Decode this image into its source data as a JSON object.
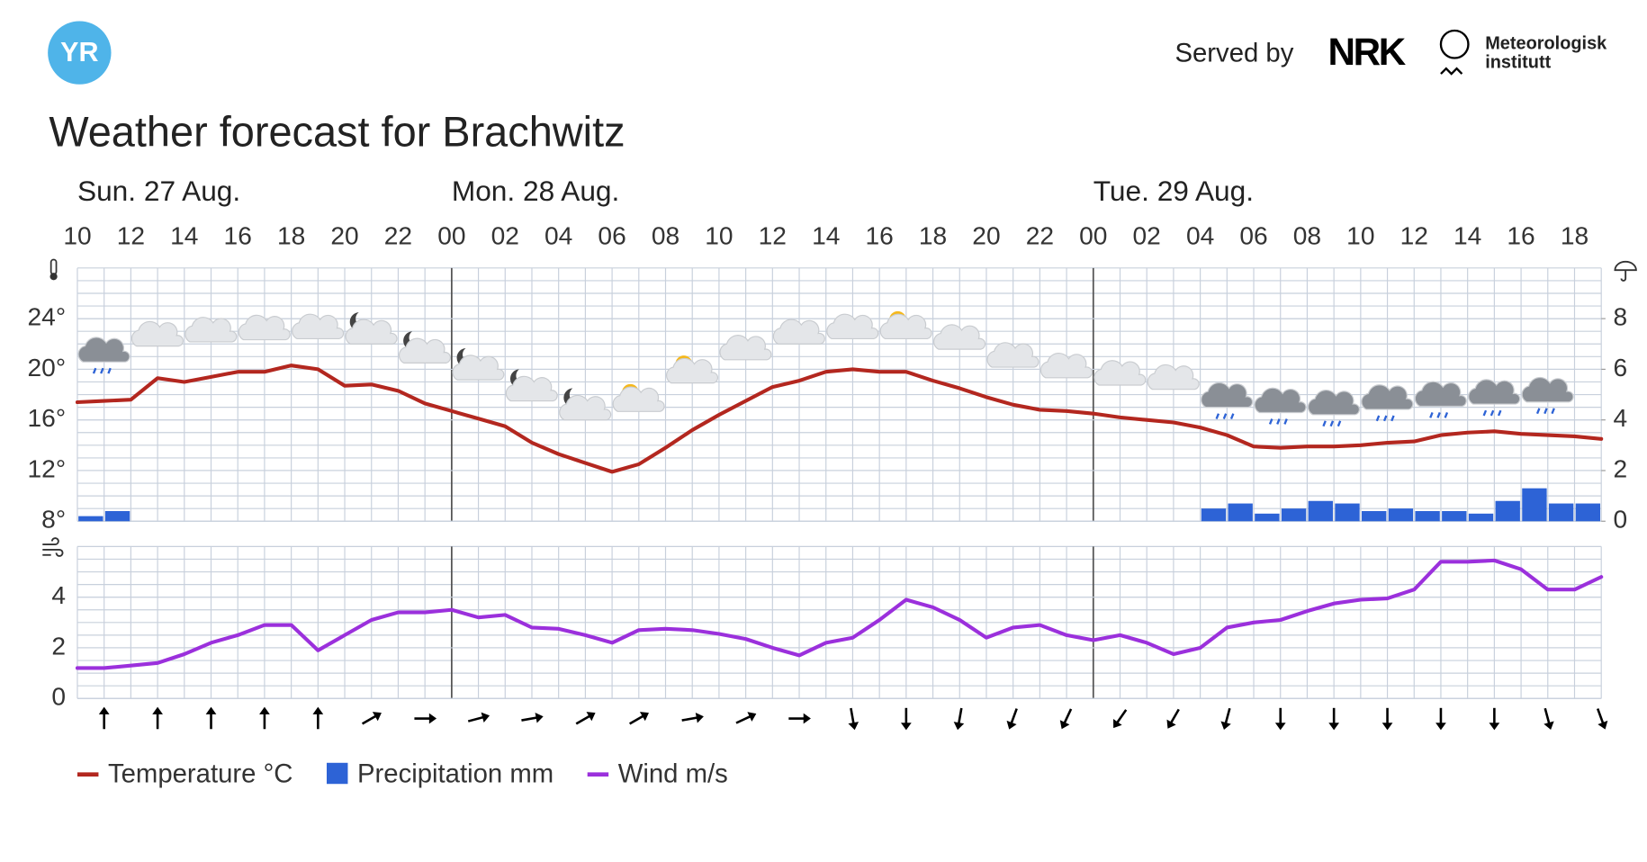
{
  "header": {
    "logo": "YR",
    "served_by": "Served by",
    "partner": "NRK",
    "institute": [
      "Meteorologisk",
      "institutt"
    ]
  },
  "title": "Weather forecast for Brachwitz",
  "days": [
    "Sun. 27 Aug.",
    "Mon. 28 Aug.",
    "Tue. 29 Aug."
  ],
  "chart_data": [
    {
      "type": "line",
      "x": [
        "10",
        "11",
        "12",
        "13",
        "14",
        "15",
        "16",
        "17",
        "18",
        "19",
        "20",
        "21",
        "22",
        "23",
        "00",
        "01",
        "02",
        "03",
        "04",
        "05",
        "06",
        "07",
        "08",
        "09",
        "10",
        "11",
        "12",
        "13",
        "14",
        "15",
        "16",
        "17",
        "18",
        "19",
        "20",
        "21",
        "22",
        "23",
        "00",
        "01",
        "02",
        "03",
        "04",
        "05",
        "06",
        "07",
        "08",
        "09",
        "10",
        "11",
        "12",
        "13",
        "14",
        "15",
        "16",
        "17",
        "18",
        "19"
      ],
      "ylim": [
        8,
        28
      ],
      "yticks": [
        {
          "value": 8,
          "label": "8°"
        },
        {
          "value": 12,
          "label": "12°"
        },
        {
          "value": 16,
          "label": "16°"
        },
        {
          "value": 20,
          "label": "20°"
        },
        {
          "value": 24,
          "label": "24°"
        }
      ],
      "y2lim": [
        0,
        10
      ],
      "y2ticks": [
        0,
        2,
        4,
        6,
        8
      ],
      "grid": true,
      "series": [
        {
          "name": "Temperature °C",
          "color": "#b3271f",
          "values": [
            17.4,
            17.5,
            17.6,
            19.3,
            19.0,
            19.4,
            19.8,
            19.8,
            20.3,
            20.0,
            18.7,
            18.8,
            18.3,
            17.3,
            16.7,
            16.1,
            15.5,
            14.2,
            13.3,
            12.6,
            11.9,
            12.5,
            13.8,
            15.2,
            16.4,
            17.5,
            18.6,
            19.1,
            19.8,
            20.0,
            19.8,
            19.8,
            19.1,
            18.5,
            17.8,
            17.2,
            16.8,
            16.7,
            16.5,
            16.2,
            16.0,
            15.8,
            15.4,
            14.8,
            13.9,
            13.8,
            13.9,
            13.9,
            14.0,
            14.2,
            14.3,
            14.8,
            15.0,
            15.1,
            14.9,
            14.8,
            14.7,
            14.5
          ]
        },
        {
          "name": "Precipitation mm",
          "color": "#2d63d6",
          "type": "bar",
          "axis": "y2",
          "values": [
            0.2,
            0.4,
            0,
            0,
            0,
            0,
            0,
            0,
            0,
            0,
            0,
            0,
            0,
            0,
            0,
            0,
            0,
            0,
            0,
            0,
            0,
            0,
            0,
            0,
            0,
            0,
            0,
            0,
            0,
            0,
            0,
            0,
            0,
            0,
            0,
            0,
            0,
            0,
            0,
            0,
            0,
            0,
            0.5,
            0.7,
            0.3,
            0.5,
            0.8,
            0.7,
            0.4,
            0.5,
            0.4,
            0.4,
            0.3,
            0.8,
            1.3,
            0.7,
            0.7,
            null
          ]
        }
      ]
    },
    {
      "type": "line",
      "ylim": [
        0,
        6
      ],
      "yticks": [
        0,
        2,
        4
      ],
      "grid": true,
      "series": [
        {
          "name": "Wind m/s",
          "color": "#9b30dc",
          "values": [
            1.2,
            1.2,
            1.3,
            1.4,
            1.75,
            2.2,
            2.5,
            2.9,
            2.9,
            1.9,
            2.5,
            3.1,
            3.4,
            3.4,
            3.5,
            3.2,
            3.3,
            2.8,
            2.75,
            2.5,
            2.2,
            2.7,
            2.75,
            2.7,
            2.55,
            2.35,
            2.0,
            1.7,
            2.2,
            2.4,
            3.1,
            3.9,
            3.6,
            3.1,
            2.4,
            2.8,
            2.9,
            2.5,
            2.3,
            2.5,
            2.2,
            1.75,
            2.0,
            2.8,
            3.0,
            3.1,
            3.45,
            3.75,
            3.9,
            3.95,
            4.3,
            5.4,
            5.4,
            5.45,
            5.1,
            4.3,
            4.3,
            4.8
          ]
        }
      ]
    }
  ]
}
